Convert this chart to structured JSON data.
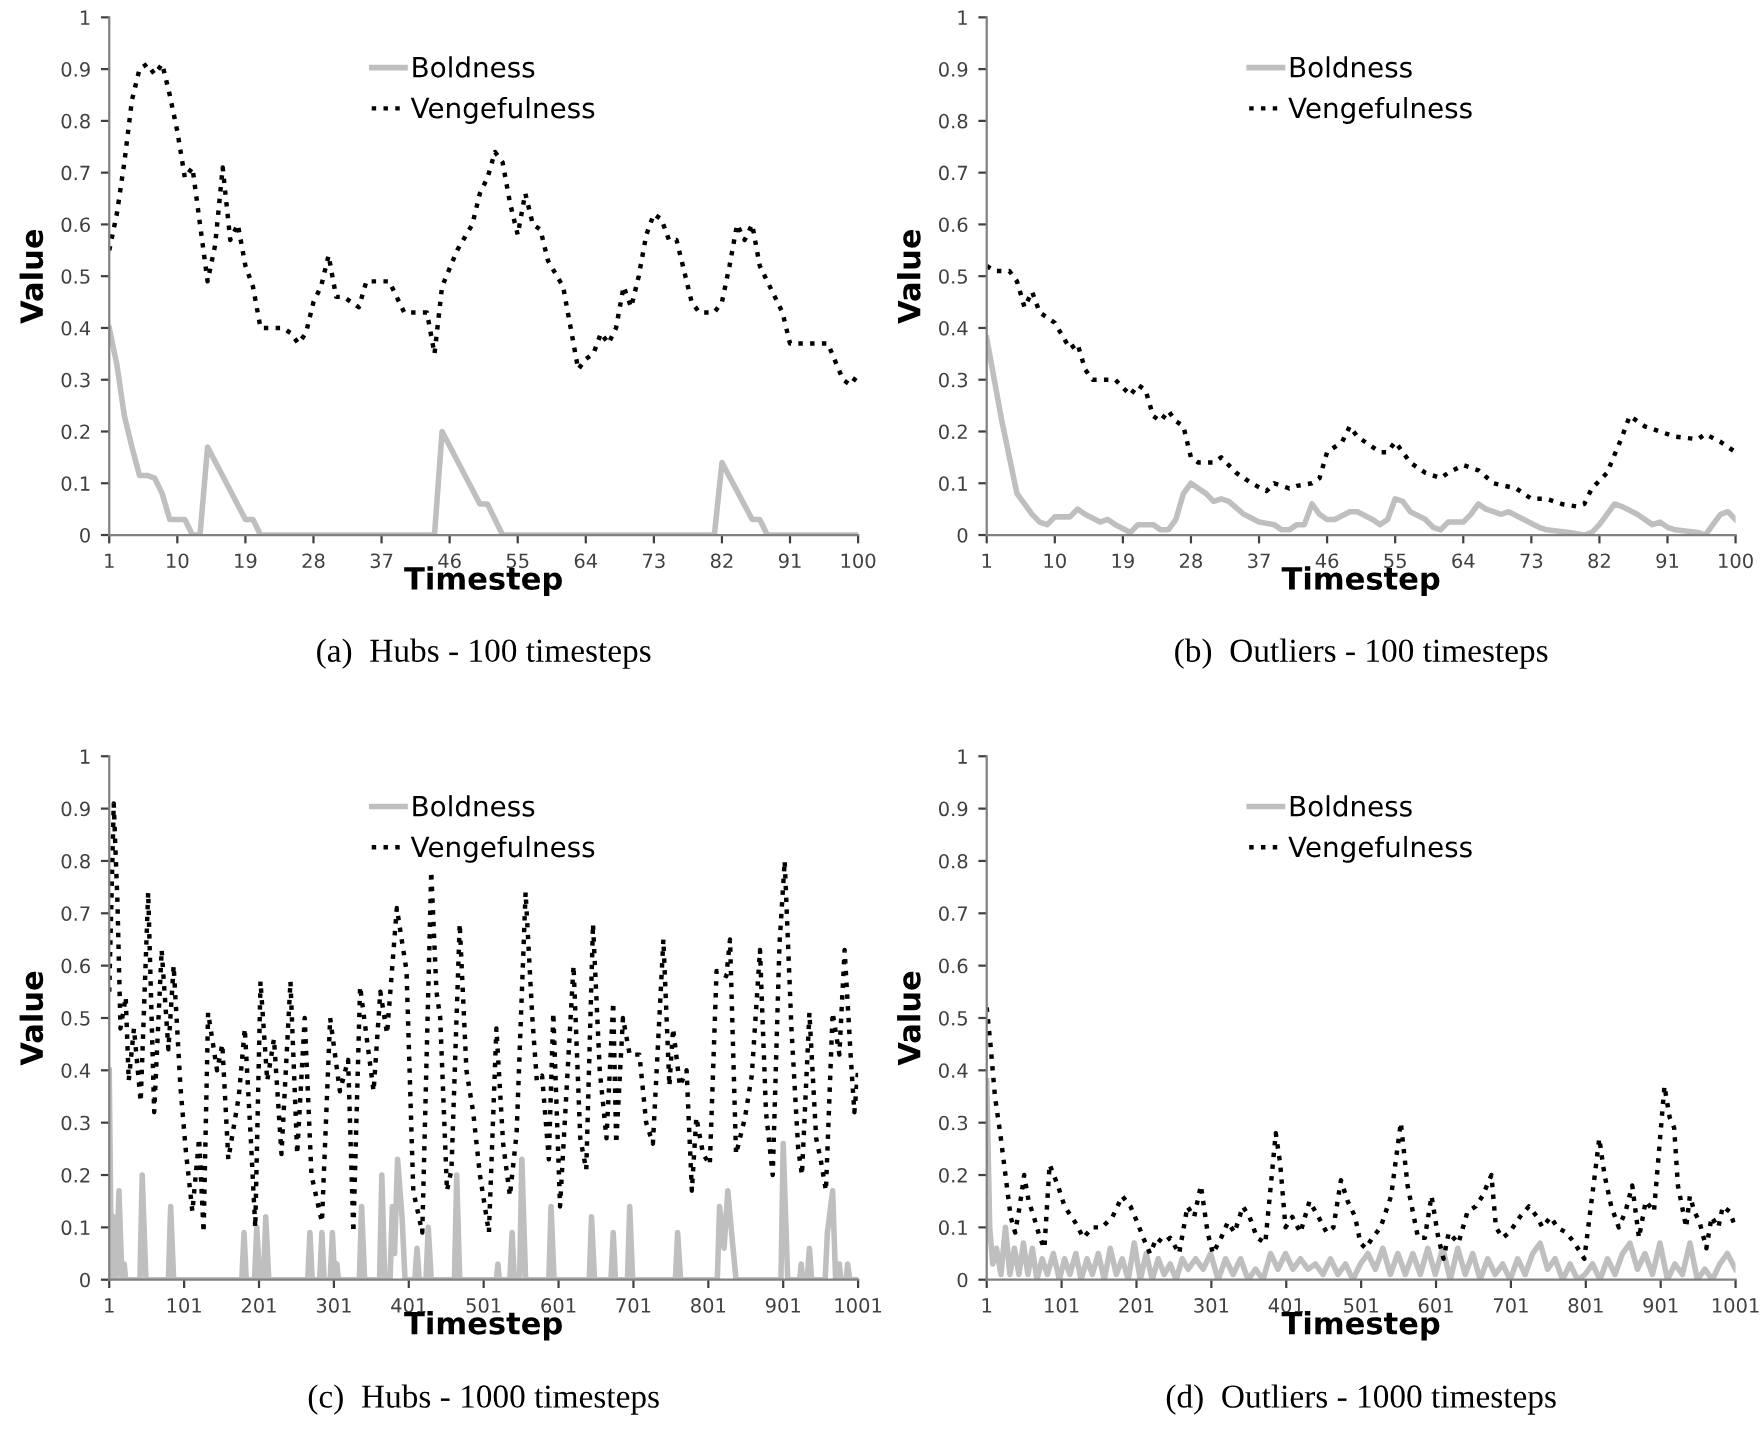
{
  "chart_data": [
    {
      "type": "line",
      "title": "(a)  Hubs - 100 timesteps",
      "xlabel": "Timestep",
      "ylabel": "Value",
      "xlim": [
        1,
        100
      ],
      "xticks": [
        1,
        10,
        19,
        28,
        37,
        46,
        55,
        64,
        73,
        82,
        91,
        100
      ],
      "ylim": [
        0,
        1
      ],
      "yticks": [
        0,
        0.1,
        0.2,
        0.3,
        0.4,
        0.5,
        0.6,
        0.7,
        0.8,
        0.9,
        1
      ],
      "legend": "top",
      "series": [
        {
          "name": "Boldness",
          "color": "#bfbfbf",
          "line_style": "solid",
          "x": [
            1,
            2,
            3,
            4,
            5,
            6,
            7,
            8,
            9,
            11,
            12,
            13,
            14,
            19,
            20,
            21,
            44,
            45,
            50,
            51,
            53,
            81,
            82,
            86,
            87,
            88,
            100
          ],
          "values": [
            0.4,
            0.33,
            0.23,
            0.17,
            0.115,
            0.115,
            0.11,
            0.08,
            0.03,
            0.03,
            0,
            0,
            0.17,
            0.03,
            0.03,
            0,
            0,
            0.2,
            0.06,
            0.06,
            0,
            0,
            0.14,
            0.03,
            0.03,
            0,
            0
          ]
        },
        {
          "name": "Vengefulness",
          "color": "#000000",
          "line_style": "dotted",
          "x": [
            1,
            2,
            3,
            4,
            5,
            6,
            7,
            8,
            9,
            10,
            11,
            12,
            13,
            14,
            15,
            16,
            17,
            18,
            19,
            20,
            21,
            24,
            25,
            26,
            27,
            28,
            29,
            30,
            31,
            32,
            34,
            35,
            38,
            40,
            43,
            44,
            45,
            47,
            49,
            50,
            51,
            52,
            53,
            54,
            55,
            56,
            57,
            58,
            59,
            61,
            62,
            63,
            64,
            65,
            66,
            67,
            68,
            69,
            70,
            71,
            72,
            73,
            74,
            75,
            76,
            77,
            78,
            79,
            81,
            82,
            83,
            84,
            85,
            86,
            87,
            89,
            90,
            91,
            96,
            98,
            99,
            100
          ],
          "values": [
            0.55,
            0.62,
            0.72,
            0.84,
            0.9,
            0.91,
            0.89,
            0.91,
            0.85,
            0.78,
            0.69,
            0.71,
            0.6,
            0.49,
            0.56,
            0.71,
            0.57,
            0.6,
            0.52,
            0.48,
            0.4,
            0.4,
            0.39,
            0.37,
            0.39,
            0.45,
            0.48,
            0.54,
            0.46,
            0.46,
            0.44,
            0.49,
            0.49,
            0.43,
            0.43,
            0.35,
            0.48,
            0.55,
            0.6,
            0.66,
            0.69,
            0.74,
            0.72,
            0.64,
            0.58,
            0.66,
            0.6,
            0.59,
            0.53,
            0.48,
            0.4,
            0.32,
            0.34,
            0.35,
            0.39,
            0.37,
            0.4,
            0.48,
            0.44,
            0.5,
            0.58,
            0.62,
            0.61,
            0.57,
            0.57,
            0.51,
            0.45,
            0.43,
            0.43,
            0.45,
            0.52,
            0.6,
            0.57,
            0.6,
            0.52,
            0.46,
            0.43,
            0.37,
            0.37,
            0.3,
            0.29,
            0.31
          ]
        }
      ]
    },
    {
      "type": "line",
      "title": "(b)  Outliers - 100 timesteps",
      "xlabel": "Timestep",
      "ylabel": "Value",
      "xlim": [
        1,
        100
      ],
      "xticks": [
        1,
        10,
        19,
        28,
        37,
        46,
        55,
        64,
        73,
        82,
        91,
        100
      ],
      "ylim": [
        0,
        1
      ],
      "yticks": [
        0,
        0.1,
        0.2,
        0.3,
        0.4,
        0.5,
        0.6,
        0.7,
        0.8,
        0.9,
        1
      ],
      "legend": "top",
      "series": [
        {
          "name": "Boldness",
          "color": "#bfbfbf",
          "line_style": "solid",
          "x": [
            1,
            2,
            3,
            4,
            5,
            6,
            7,
            8,
            9,
            10,
            11,
            12,
            13,
            14,
            16,
            17,
            18,
            20,
            21,
            23,
            24,
            25,
            26,
            27,
            28,
            29,
            30,
            31,
            32,
            33,
            35,
            37,
            39,
            40,
            41,
            42,
            43,
            44,
            45,
            46,
            47,
            49,
            50,
            52,
            53,
            54,
            55,
            56,
            57,
            59,
            60,
            61,
            62,
            63,
            64,
            65,
            66,
            67,
            68,
            69,
            70,
            72,
            74,
            75,
            78,
            80,
            81,
            82,
            83,
            84,
            85,
            87,
            89,
            90,
            91,
            92,
            95,
            96,
            97,
            98,
            99,
            100
          ],
          "values": [
            0.38,
            0.3,
            0.22,
            0.15,
            0.08,
            0.06,
            0.04,
            0.025,
            0.02,
            0.035,
            0.035,
            0.035,
            0.05,
            0.04,
            0.025,
            0.03,
            0.02,
            0.005,
            0.02,
            0.02,
            0.01,
            0.01,
            0.03,
            0.08,
            0.1,
            0.09,
            0.08,
            0.065,
            0.07,
            0.065,
            0.04,
            0.025,
            0.02,
            0.01,
            0.01,
            0.02,
            0.02,
            0.06,
            0.04,
            0.03,
            0.03,
            0.045,
            0.045,
            0.03,
            0.02,
            0.03,
            0.07,
            0.065,
            0.045,
            0.03,
            0.015,
            0.01,
            0.025,
            0.025,
            0.025,
            0.04,
            0.06,
            0.05,
            0.045,
            0.04,
            0.045,
            0.03,
            0.015,
            0.01,
            0.005,
            0,
            0.005,
            0.02,
            0.04,
            0.06,
            0.055,
            0.04,
            0.02,
            0.025,
            0.015,
            0.01,
            0.005,
            0,
            0.02,
            0.04,
            0.045,
            0.03
          ]
        },
        {
          "name": "Vengefulness",
          "color": "#000000",
          "line_style": "dotted",
          "x": [
            1,
            2,
            4,
            5,
            6,
            7,
            8,
            9,
            10,
            12,
            13,
            14,
            15,
            18,
            20,
            21,
            22,
            23,
            24,
            25,
            26,
            27,
            28,
            29,
            31,
            32,
            34,
            36,
            38,
            39,
            41,
            42,
            44,
            45,
            46,
            48,
            49,
            50,
            52,
            53,
            54,
            55,
            57,
            59,
            61,
            62,
            64,
            66,
            68,
            71,
            73,
            75,
            77,
            79,
            80,
            81,
            83,
            85,
            86,
            88,
            90,
            92,
            95,
            96,
            98,
            100
          ],
          "values": [
            0.52,
            0.51,
            0.51,
            0.49,
            0.44,
            0.47,
            0.43,
            0.42,
            0.41,
            0.36,
            0.37,
            0.32,
            0.3,
            0.3,
            0.27,
            0.29,
            0.28,
            0.23,
            0.22,
            0.24,
            0.22,
            0.21,
            0.15,
            0.14,
            0.14,
            0.15,
            0.12,
            0.1,
            0.085,
            0.1,
            0.09,
            0.095,
            0.1,
            0.11,
            0.16,
            0.18,
            0.21,
            0.19,
            0.17,
            0.16,
            0.16,
            0.18,
            0.14,
            0.12,
            0.11,
            0.12,
            0.135,
            0.125,
            0.1,
            0.09,
            0.07,
            0.07,
            0.06,
            0.055,
            0.06,
            0.09,
            0.12,
            0.19,
            0.23,
            0.21,
            0.2,
            0.19,
            0.185,
            0.195,
            0.18,
            0.16
          ]
        }
      ]
    },
    {
      "type": "line",
      "title": "(c)  Hubs - 1000 timesteps",
      "xlabel": "Timestep",
      "ylabel": "Value",
      "xlim": [
        1,
        1001
      ],
      "xticks": [
        1,
        101,
        201,
        301,
        401,
        501,
        601,
        701,
        801,
        901,
        1001
      ],
      "ylim": [
        0,
        1
      ],
      "yticks": [
        0,
        0.1,
        0.2,
        0.3,
        0.4,
        0.5,
        0.6,
        0.7,
        0.8,
        0.9,
        1
      ],
      "legend": "top",
      "series": [
        {
          "name": "Boldness",
          "color": "#bfbfbf",
          "line_style": "solid",
          "x": [
            1,
            4,
            7,
            10,
            14,
            18,
            21,
            23,
            42,
            45,
            50,
            80,
            83,
            87,
            178,
            181,
            184,
            195,
            198,
            202,
            207,
            210,
            214,
            266,
            269,
            272,
            282,
            285,
            288,
            296,
            299,
            302,
            305,
            307,
            335,
            338,
            342,
            362,
            365,
            369,
            376,
            379,
            382,
            386,
            392,
            396,
            409,
            412,
            415,
            424,
            427,
            431,
            462,
            465,
            469,
            518,
            520,
            522,
            536,
            539,
            542,
            549,
            552,
            557,
            588,
            591,
            595,
            642,
            645,
            649,
            671,
            674,
            677,
            693,
            696,
            700,
            757,
            760,
            764,
            813,
            816,
            822,
            827,
            834,
            838,
            898,
            901,
            907,
            923,
            925,
            927,
            933,
            936,
            939,
            957,
            960,
            967,
            971,
            976,
            978,
            985,
            987,
            990,
            1001
          ],
          "values": [
            0.4,
            0,
            0.12,
            0,
            0.17,
            0,
            0.03,
            0,
            0,
            0.2,
            0,
            0,
            0.14,
            0,
            0,
            0.09,
            0,
            0,
            0.1,
            0,
            0,
            0.12,
            0,
            0,
            0.09,
            0,
            0,
            0.09,
            0,
            0,
            0.09,
            0,
            0.03,
            0,
            0,
            0.14,
            0,
            0,
            0.2,
            0,
            0,
            0.14,
            0.05,
            0.23,
            0.12,
            0,
            0,
            0.06,
            0,
            0,
            0.1,
            0,
            0,
            0.2,
            0,
            0,
            0.03,
            0,
            0,
            0.09,
            0,
            0,
            0.23,
            0,
            0,
            0.14,
            0,
            0,
            0.12,
            0,
            0,
            0.09,
            0,
            0,
            0.14,
            0,
            0,
            0.09,
            0,
            0,
            0.14,
            0.06,
            0.17,
            0.06,
            0,
            0,
            0.26,
            0,
            0,
            0.03,
            0,
            0,
            0.06,
            0,
            0,
            0.09,
            0.17,
            0,
            0.03,
            0,
            0,
            0.03,
            0,
            0
          ]
        },
        {
          "name": "Vengefulness",
          "color": "#000000",
          "line_style": "dotted",
          "x": [
            1,
            7,
            12,
            16,
            23,
            27,
            34,
            43,
            53,
            61,
            71,
            80,
            87,
            96,
            103,
            112,
            121,
            127,
            133,
            145,
            152,
            160,
            174,
            182,
            190,
            196,
            203,
            212,
            221,
            231,
            243,
            252,
            262,
            271,
            285,
            296,
            309,
            320,
            327,
            336,
            354,
            363,
            372,
            385,
            398,
            407,
            419,
            431,
            438,
            443,
            452,
            458,
            469,
            478,
            487,
            496,
            508,
            518,
            527,
            536,
            545,
            557,
            566,
            572,
            579,
            588,
            594,
            603,
            621,
            630,
            638,
            647,
            656,
            665,
            674,
            678,
            687,
            696,
            709,
            718,
            727,
            741,
            749,
            754,
            763,
            772,
            779,
            785,
            794,
            803,
            812,
            825,
            830,
            838,
            850,
            859,
            870,
            878,
            887,
            896,
            903,
            912,
            921,
            926,
            936,
            945,
            951,
            958,
            967,
            976,
            983,
            991,
            996,
            1001
          ],
          "values": [
            0.55,
            0.91,
            0.72,
            0.48,
            0.54,
            0.38,
            0.48,
            0.34,
            0.74,
            0.32,
            0.63,
            0.44,
            0.6,
            0.37,
            0.25,
            0.13,
            0.27,
            0.09,
            0.51,
            0.4,
            0.45,
            0.23,
            0.35,
            0.48,
            0.27,
            0.1,
            0.57,
            0.38,
            0.46,
            0.24,
            0.57,
            0.24,
            0.5,
            0.2,
            0.11,
            0.5,
            0.36,
            0.42,
            0.09,
            0.56,
            0.36,
            0.55,
            0.47,
            0.71,
            0.59,
            0.17,
            0.09,
            0.78,
            0.55,
            0.5,
            0.17,
            0.21,
            0.68,
            0.4,
            0.32,
            0.2,
            0.09,
            0.48,
            0.26,
            0.16,
            0.28,
            0.74,
            0.5,
            0.38,
            0.39,
            0.23,
            0.51,
            0.14,
            0.6,
            0.27,
            0.21,
            0.68,
            0.4,
            0.27,
            0.53,
            0.26,
            0.5,
            0.43,
            0.43,
            0.3,
            0.26,
            0.65,
            0.37,
            0.48,
            0.37,
            0.4,
            0.17,
            0.31,
            0.24,
            0.22,
            0.59,
            0.58,
            0.65,
            0.24,
            0.31,
            0.39,
            0.63,
            0.32,
            0.2,
            0.64,
            0.8,
            0.48,
            0.25,
            0.2,
            0.51,
            0.27,
            0.23,
            0.17,
            0.51,
            0.43,
            0.63,
            0.43,
            0.32,
            0.4
          ]
        }
      ]
    },
    {
      "type": "line",
      "title": "(d)  Outliers - 1000 timesteps",
      "xlabel": "Timestep",
      "ylabel": "Value",
      "xlim": [
        1,
        1001
      ],
      "xticks": [
        1,
        101,
        201,
        301,
        401,
        501,
        601,
        701,
        801,
        901,
        1001
      ],
      "ylim": [
        0,
        1
      ],
      "yticks": [
        0,
        0.1,
        0.2,
        0.3,
        0.4,
        0.5,
        0.6,
        0.7,
        0.8,
        0.9,
        1
      ],
      "legend": "top",
      "series": [
        {
          "name": "Boldness",
          "color": "#bfbfbf",
          "line_style": "solid",
          "x": [
            1,
            5,
            9,
            14,
            20,
            26,
            32,
            38,
            44,
            50,
            56,
            62,
            68,
            75,
            82,
            90,
            98,
            105,
            112,
            120,
            127,
            135,
            142,
            150,
            158,
            166,
            174,
            182,
            190,
            198,
            206,
            214,
            222,
            230,
            238,
            246,
            254,
            262,
            270,
            280,
            290,
            300,
            310,
            320,
            330,
            340,
            350,
            360,
            370,
            380,
            390,
            400,
            410,
            420,
            430,
            440,
            450,
            460,
            470,
            480,
            490,
            500,
            510,
            520,
            530,
            540,
            550,
            560,
            570,
            580,
            590,
            600,
            610,
            620,
            630,
            640,
            650,
            660,
            670,
            680,
            690,
            700,
            710,
            720,
            730,
            740,
            750,
            760,
            770,
            780,
            790,
            800,
            810,
            820,
            830,
            840,
            850,
            860,
            870,
            880,
            890,
            900,
            910,
            920,
            930,
            940,
            950,
            960,
            970,
            980,
            990,
            1001
          ],
          "values": [
            0.38,
            0.1,
            0.03,
            0.06,
            0.01,
            0.1,
            0.01,
            0.06,
            0.01,
            0.07,
            0.01,
            0.06,
            0,
            0.04,
            0.01,
            0.05,
            0,
            0.04,
            0.01,
            0.05,
            0,
            0.04,
            0.01,
            0.05,
            0,
            0.06,
            0.01,
            0.04,
            0,
            0.07,
            0,
            0.05,
            0,
            0.04,
            0.01,
            0.03,
            0,
            0.04,
            0.02,
            0.04,
            0.02,
            0.05,
            0,
            0.04,
            0.01,
            0.04,
            0,
            0.02,
            0,
            0.05,
            0.02,
            0.05,
            0.02,
            0.04,
            0.02,
            0.03,
            0.01,
            0.04,
            0.01,
            0.03,
            0,
            0.03,
            0.05,
            0.02,
            0.06,
            0.01,
            0.05,
            0.01,
            0.05,
            0.01,
            0.06,
            0.01,
            0.06,
            0,
            0.06,
            0.01,
            0.05,
            0,
            0.04,
            0.01,
            0.03,
            0,
            0.04,
            0.01,
            0.05,
            0.07,
            0.02,
            0.04,
            0,
            0.03,
            0,
            0.01,
            0.03,
            0,
            0.04,
            0.01,
            0.05,
            0.07,
            0.02,
            0.05,
            0.01,
            0.07,
            0,
            0.03,
            0.01,
            0.07,
            0,
            0.02,
            0,
            0.03,
            0.05,
            0.02
          ]
        },
        {
          "name": "Vengefulness",
          "color": "#000000",
          "line_style": "dotted",
          "x": [
            1,
            6,
            12,
            19,
            26,
            33,
            39,
            45,
            51,
            57,
            64,
            72,
            78,
            85,
            96,
            105,
            119,
            130,
            142,
            155,
            169,
            182,
            193,
            202,
            210,
            219,
            228,
            237,
            246,
            258,
            269,
            278,
            287,
            296,
            303,
            314,
            323,
            332,
            343,
            352,
            362,
            373,
            387,
            393,
            400,
            409,
            420,
            432,
            444,
            455,
            464,
            474,
            483,
            493,
            500,
            507,
            516,
            527,
            541,
            554,
            563,
            577,
            586,
            595,
            604,
            611,
            618,
            631,
            643,
            654,
            663,
            675,
            681,
            690,
            699,
            713,
            725,
            736,
            743,
            754,
            763,
            775,
            786,
            799,
            813,
            819,
            826,
            835,
            845,
            854,
            863,
            872,
            881,
            892,
            906,
            913,
            919,
            924,
            935,
            940,
            946,
            953,
            962,
            969,
            978,
            984,
            993,
            1001
          ],
          "values": [
            0.52,
            0.45,
            0.35,
            0.28,
            0.2,
            0.12,
            0.09,
            0.14,
            0.2,
            0.15,
            0.12,
            0.08,
            0.06,
            0.22,
            0.18,
            0.14,
            0.11,
            0.08,
            0.1,
            0.1,
            0.12,
            0.16,
            0.14,
            0.11,
            0.08,
            0.05,
            0.08,
            0.07,
            0.08,
            0.05,
            0.14,
            0.12,
            0.18,
            0.09,
            0.05,
            0.08,
            0.11,
            0.09,
            0.14,
            0.12,
            0.08,
            0.07,
            0.28,
            0.22,
            0.1,
            0.12,
            0.09,
            0.15,
            0.12,
            0.09,
            0.1,
            0.19,
            0.15,
            0.12,
            0.07,
            0.06,
            0.08,
            0.1,
            0.16,
            0.3,
            0.18,
            0.08,
            0.08,
            0.16,
            0.08,
            0.04,
            0.09,
            0.07,
            0.13,
            0.14,
            0.16,
            0.2,
            0.1,
            0.08,
            0.09,
            0.12,
            0.14,
            0.12,
            0.1,
            0.12,
            0.1,
            0.09,
            0.07,
            0.04,
            0.2,
            0.27,
            0.2,
            0.14,
            0.1,
            0.13,
            0.18,
            0.08,
            0.15,
            0.13,
            0.37,
            0.31,
            0.29,
            0.18,
            0.1,
            0.16,
            0.13,
            0.11,
            0.06,
            0.12,
            0.1,
            0.14,
            0.13,
            0.1
          ]
        }
      ]
    }
  ]
}
